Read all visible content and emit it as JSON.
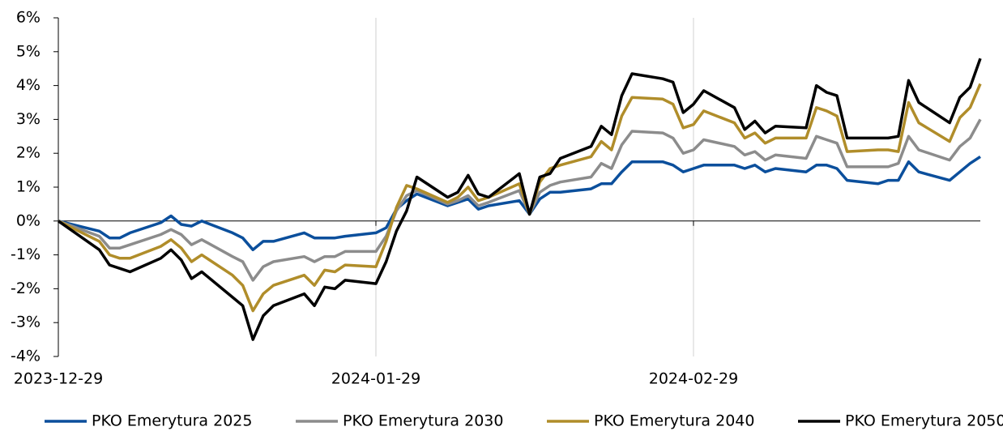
{
  "chart_data": {
    "type": "line",
    "x": [
      "2023-12-29",
      "2024-01-02",
      "2024-01-03",
      "2024-01-04",
      "2024-01-05",
      "2024-01-08",
      "2024-01-09",
      "2024-01-10",
      "2024-01-11",
      "2024-01-12",
      "2024-01-15",
      "2024-01-16",
      "2024-01-17",
      "2024-01-18",
      "2024-01-19",
      "2024-01-22",
      "2024-01-23",
      "2024-01-24",
      "2024-01-25",
      "2024-01-26",
      "2024-01-29",
      "2024-01-30",
      "2024-01-31",
      "2024-02-01",
      "2024-02-02",
      "2024-02-05",
      "2024-02-06",
      "2024-02-07",
      "2024-02-08",
      "2024-02-09",
      "2024-02-12",
      "2024-02-13",
      "2024-02-14",
      "2024-02-15",
      "2024-02-16",
      "2024-02-19",
      "2024-02-20",
      "2024-02-21",
      "2024-02-22",
      "2024-02-23",
      "2024-02-26",
      "2024-02-27",
      "2024-02-28",
      "2024-02-29",
      "2024-03-01",
      "2024-03-04",
      "2024-03-05",
      "2024-03-06",
      "2024-03-07",
      "2024-03-08",
      "2024-03-11",
      "2024-03-12",
      "2024-03-13",
      "2024-03-14",
      "2024-03-15",
      "2024-03-18",
      "2024-03-19",
      "2024-03-20",
      "2024-03-21",
      "2024-03-22",
      "2024-03-25",
      "2024-03-26",
      "2024-03-27",
      "2024-03-28"
    ],
    "series": [
      {
        "name": "PKO Emerytura 2025",
        "color": "#0b4f9c",
        "values": [
          0,
          -0.3,
          -0.5,
          -0.5,
          -0.35,
          -0.05,
          0.15,
          -0.1,
          -0.15,
          0,
          -0.35,
          -0.5,
          -0.85,
          -0.6,
          -0.6,
          -0.35,
          -0.5,
          -0.5,
          -0.5,
          -0.45,
          -0.35,
          -0.2,
          0.35,
          0.6,
          0.8,
          0.45,
          0.55,
          0.65,
          0.35,
          0.45,
          0.6,
          0.2,
          0.65,
          0.85,
          0.85,
          0.95,
          1.1,
          1.1,
          1.45,
          1.75,
          1.75,
          1.65,
          1.45,
          1.55,
          1.65,
          1.65,
          1.55,
          1.65,
          1.45,
          1.55,
          1.45,
          1.65,
          1.65,
          1.55,
          1.2,
          1.1,
          1.2,
          1.2,
          1.75,
          1.45,
          1.2,
          1.45,
          1.7,
          1.9
        ]
      },
      {
        "name": "PKO Emerytura 2030",
        "color": "#8c8c8c",
        "values": [
          0,
          -0.45,
          -0.8,
          -0.8,
          -0.7,
          -0.4,
          -0.25,
          -0.4,
          -0.7,
          -0.55,
          -1.05,
          -1.2,
          -1.75,
          -1.35,
          -1.2,
          -1.05,
          -1.2,
          -1.05,
          -1.05,
          -0.9,
          -0.9,
          -0.45,
          0.3,
          0.75,
          0.9,
          0.5,
          0.6,
          0.75,
          0.45,
          0.55,
          0.9,
          0.2,
          0.85,
          1.05,
          1.15,
          1.3,
          1.7,
          1.55,
          2.25,
          2.65,
          2.6,
          2.45,
          2.0,
          2.1,
          2.4,
          2.2,
          1.95,
          2.05,
          1.8,
          1.95,
          1.85,
          2.5,
          2.4,
          2.3,
          1.6,
          1.6,
          1.6,
          1.7,
          2.5,
          2.1,
          1.8,
          2.2,
          2.45,
          3.0
        ]
      },
      {
        "name": "PKO Emerytura 2040",
        "color": "#b08d2a",
        "values": [
          0,
          -0.6,
          -1.0,
          -1.1,
          -1.1,
          -0.75,
          -0.55,
          -0.8,
          -1.2,
          -1.0,
          -1.6,
          -1.9,
          -2.65,
          -2.15,
          -1.9,
          -1.6,
          -1.9,
          -1.45,
          -1.5,
          -1.3,
          -1.35,
          -0.6,
          0.4,
          1.05,
          0.95,
          0.55,
          0.7,
          1.0,
          0.6,
          0.7,
          1.1,
          0.2,
          1.15,
          1.55,
          1.65,
          1.9,
          2.35,
          2.1,
          3.1,
          3.65,
          3.6,
          3.45,
          2.75,
          2.85,
          3.25,
          2.9,
          2.45,
          2.6,
          2.3,
          2.45,
          2.45,
          3.35,
          3.25,
          3.1,
          2.05,
          2.1,
          2.1,
          2.05,
          3.5,
          2.9,
          2.35,
          3.05,
          3.35,
          4.05
        ]
      },
      {
        "name": "PKO Emerytura 2050",
        "color": "#000000",
        "values": [
          0,
          -0.85,
          -1.3,
          -1.4,
          -1.5,
          -1.1,
          -0.85,
          -1.15,
          -1.7,
          -1.5,
          -2.25,
          -2.5,
          -3.5,
          -2.8,
          -2.5,
          -2.15,
          -2.5,
          -1.95,
          -2.0,
          -1.75,
          -1.85,
          -1.2,
          -0.3,
          0.3,
          1.3,
          0.7,
          0.85,
          1.35,
          0.8,
          0.7,
          1.4,
          0.2,
          1.3,
          1.4,
          1.85,
          2.2,
          2.8,
          2.55,
          3.7,
          4.35,
          4.2,
          4.1,
          3.2,
          3.45,
          3.85,
          3.35,
          2.7,
          2.95,
          2.6,
          2.8,
          2.75,
          4.0,
          3.8,
          3.7,
          2.45,
          2.45,
          2.45,
          2.5,
          4.15,
          3.5,
          2.9,
          3.65,
          3.95,
          4.8
        ]
      }
    ],
    "xlim": [
      "2023-12-29",
      "2024-03-28"
    ],
    "xticks": [
      "2023-12-29",
      "2024-01-29",
      "2024-02-29"
    ],
    "ylim": [
      -4,
      6
    ],
    "yticks": [
      {
        "value": -4,
        "label": "-4%"
      },
      {
        "value": -3,
        "label": "-3%"
      },
      {
        "value": -2,
        "label": "-2%"
      },
      {
        "value": -1,
        "label": "-1%"
      },
      {
        "value": 0,
        "label": "0%"
      },
      {
        "value": 1,
        "label": "1%"
      },
      {
        "value": 2,
        "label": "2%"
      },
      {
        "value": 3,
        "label": "3%"
      },
      {
        "value": 4,
        "label": "4%"
      },
      {
        "value": 5,
        "label": "5%"
      },
      {
        "value": 6,
        "label": "6%"
      }
    ],
    "grid": "x",
    "legend": "bottom"
  }
}
